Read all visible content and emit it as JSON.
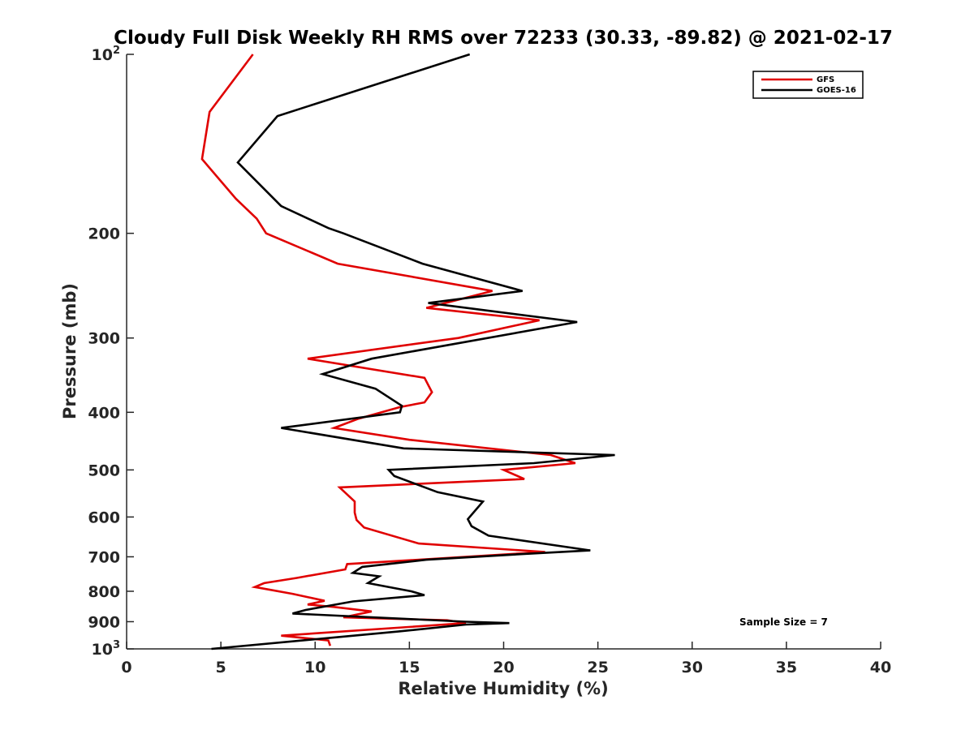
{
  "chart_data": {
    "type": "line",
    "title": "Cloudy Full Disk Weekly RH RMS over 72233 (30.33, -89.82) @ 2021-02-17",
    "xlabel": "Relative Humidity (%)",
    "ylabel": "Pressure (mb)",
    "xlim": [
      0,
      40
    ],
    "ylim": [
      100,
      1000
    ],
    "yscale": "log",
    "yreversed": true,
    "grid": false,
    "xticks": [
      0,
      5,
      10,
      15,
      20,
      25,
      30,
      35,
      40
    ],
    "xtick_labels": [
      "0",
      "5",
      "10",
      "15",
      "20",
      "25",
      "30",
      "35",
      "40"
    ],
    "yticks": [
      {
        "value": 100,
        "base": "10",
        "exp": "2"
      },
      {
        "value": 200,
        "label": "200"
      },
      {
        "value": 300,
        "label": "300"
      },
      {
        "value": 400,
        "label": "400"
      },
      {
        "value": 500,
        "label": "500"
      },
      {
        "value": 600,
        "label": "600"
      },
      {
        "value": 700,
        "label": "700"
      },
      {
        "value": 800,
        "label": "800"
      },
      {
        "value": 900,
        "label": "900"
      },
      {
        "value": 1000,
        "base": "10",
        "exp": "3"
      }
    ],
    "legend_position": "top-right",
    "annotation": "Sample Size = 7",
    "series": [
      {
        "name": "GFS",
        "color": "#e00000",
        "points": [
          [
            6.7,
            100
          ],
          [
            4.4,
            125
          ],
          [
            4.0,
            150
          ],
          [
            5.8,
            175
          ],
          [
            6.9,
            189
          ],
          [
            7.4,
            200
          ],
          [
            11.2,
            225
          ],
          [
            19.4,
            250
          ],
          [
            15.9,
            267
          ],
          [
            21.9,
            280
          ],
          [
            17.6,
            300
          ],
          [
            9.6,
            325
          ],
          [
            15.8,
            350
          ],
          [
            16.2,
            370
          ],
          [
            15.8,
            385
          ],
          [
            14.5,
            392
          ],
          [
            12.3,
            410
          ],
          [
            11.0,
            425
          ],
          [
            15.0,
            445
          ],
          [
            22.5,
            472
          ],
          [
            23.8,
            487
          ],
          [
            20.0,
            500
          ],
          [
            21.1,
            518
          ],
          [
            11.3,
            535
          ],
          [
            12.1,
            565
          ],
          [
            12.1,
            590
          ],
          [
            12.2,
            607
          ],
          [
            12.6,
            625
          ],
          [
            15.5,
            665
          ],
          [
            22.2,
            687
          ],
          [
            11.7,
            720
          ],
          [
            11.6,
            735
          ],
          [
            9.0,
            760
          ],
          [
            7.3,
            775
          ],
          [
            6.8,
            787
          ],
          [
            8.8,
            808
          ],
          [
            10.5,
            830
          ],
          [
            9.6,
            842
          ],
          [
            11.0,
            850
          ],
          [
            13.0,
            865
          ],
          [
            11.5,
            885
          ],
          [
            17.0,
            895
          ],
          [
            18.0,
            905
          ],
          [
            8.2,
            950
          ],
          [
            10.7,
            968
          ],
          [
            10.8,
            988
          ]
        ]
      },
      {
        "name": "GOES-16",
        "color": "#000000",
        "points": [
          [
            18.2,
            100
          ],
          [
            8.0,
            127
          ],
          [
            5.9,
            152
          ],
          [
            8.2,
            180
          ],
          [
            10.7,
            196
          ],
          [
            11.5,
            200
          ],
          [
            15.7,
            225
          ],
          [
            21.0,
            250
          ],
          [
            16.0,
            262
          ],
          [
            23.9,
            282
          ],
          [
            13.0,
            325
          ],
          [
            10.4,
            345
          ],
          [
            13.2,
            365
          ],
          [
            14.6,
            390
          ],
          [
            14.5,
            400
          ],
          [
            8.2,
            425
          ],
          [
            14.7,
            460
          ],
          [
            25.9,
            472
          ],
          [
            21.6,
            487
          ],
          [
            13.9,
            500
          ],
          [
            14.2,
            512
          ],
          [
            16.5,
            545
          ],
          [
            18.9,
            565
          ],
          [
            18.1,
            605
          ],
          [
            18.3,
            622
          ],
          [
            19.2,
            645
          ],
          [
            24.6,
            683
          ],
          [
            21.2,
            692
          ],
          [
            15.9,
            708
          ],
          [
            12.5,
            728
          ],
          [
            12.0,
            745
          ],
          [
            13.4,
            755
          ],
          [
            12.8,
            775
          ],
          [
            15.1,
            800
          ],
          [
            15.8,
            812
          ],
          [
            12.0,
            832
          ],
          [
            9.5,
            860
          ],
          [
            8.8,
            872
          ],
          [
            18.0,
            900
          ],
          [
            20.3,
            905
          ],
          [
            18.0,
            910
          ],
          [
            14.4,
            935
          ],
          [
            4.5,
            1000
          ]
        ]
      }
    ]
  }
}
